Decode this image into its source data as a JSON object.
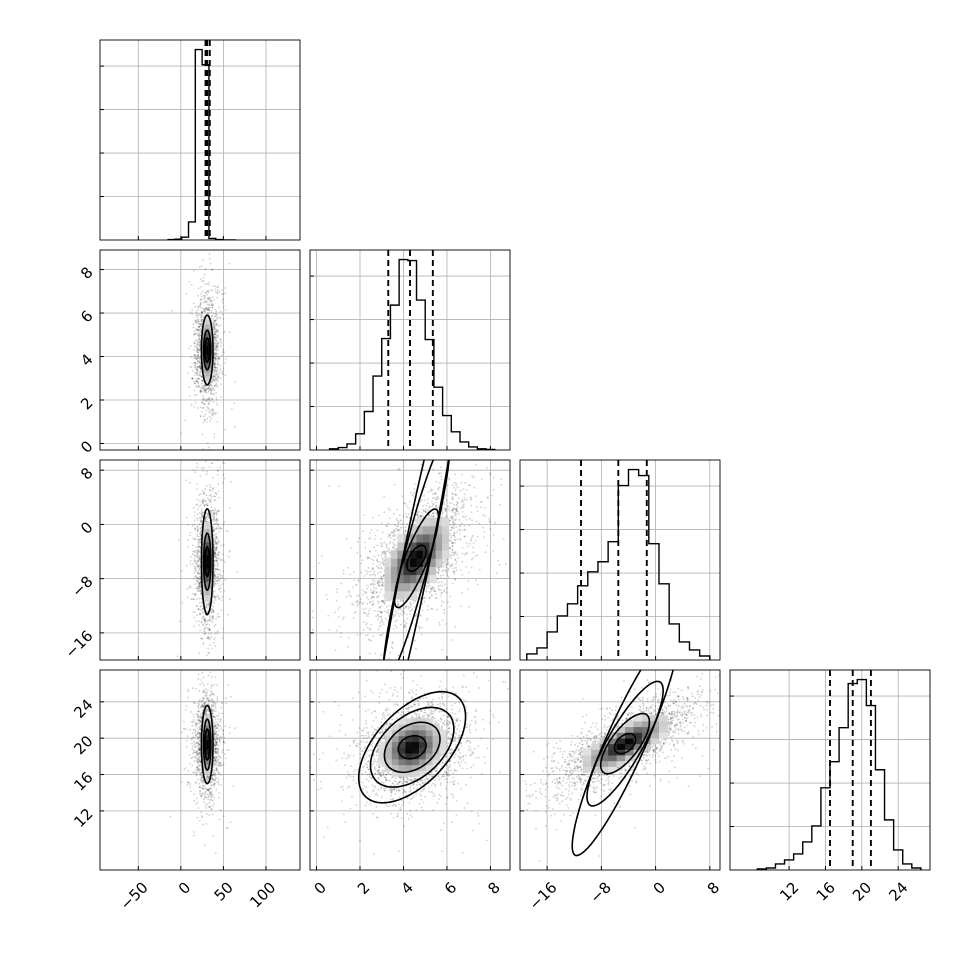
{
  "chart_data": {
    "type": "corner",
    "grid": true,
    "parameters": [
      {
        "range": [
          -95,
          140
        ],
        "ticks": [
          -50,
          0,
          50,
          100
        ],
        "tick_labels": [
          "−50",
          "0",
          "50",
          "100"
        ],
        "quantiles": [
          29,
          31,
          34
        ],
        "bin_edges": [
          -15,
          -7,
          1,
          9,
          17,
          25,
          33,
          41,
          49,
          57,
          65
        ],
        "hist_counts": [
          0.2,
          0.4,
          1.5,
          9.5,
          100,
          92,
          0.8,
          0.2,
          0,
          0
        ]
      },
      {
        "range": [
          -0.3,
          8.9
        ],
        "ticks": [
          0,
          2,
          4,
          6,
          8
        ],
        "tick_labels": [
          "0",
          "2",
          "4",
          "6",
          "8"
        ],
        "quantiles": [
          3.3,
          4.3,
          5.35
        ],
        "bin_edges": [
          0.6,
          1.0,
          1.4,
          1.8,
          2.2,
          2.6,
          3.0,
          3.4,
          3.8,
          4.2,
          4.6,
          5.0,
          5.4,
          5.8,
          6.2,
          6.6,
          7.0,
          7.4,
          7.8,
          8.2
        ],
        "hist_counts": [
          0.6,
          1.2,
          3.0,
          8.0,
          19.0,
          36.5,
          55.0,
          71.5,
          94.0,
          93.5,
          74.0,
          54.5,
          31.0,
          17.0,
          9.0,
          4.0,
          1.5,
          0.6,
          0.3
        ]
      },
      {
        "range": [
          -20,
          9.5
        ],
        "ticks": [
          -16,
          -8,
          0,
          8
        ],
        "tick_labels": [
          "−16",
          "−8",
          "0",
          "8"
        ],
        "quantiles": [
          -11,
          -5.5,
          -1.3
        ],
        "bin_edges": [
          -19,
          -17.5,
          -16,
          -14.5,
          -13,
          -11.5,
          -10,
          -8.5,
          -7,
          -5.5,
          -4,
          -2.5,
          -1,
          0.5,
          2,
          3.5,
          5,
          6.5,
          8
        ],
        "hist_counts": [
          3,
          6,
          14,
          22,
          28,
          37,
          44,
          49,
          59,
          87,
          95,
          92,
          58,
          38,
          18,
          9,
          5,
          2
        ]
      },
      {
        "range": [
          5.5,
          27.5
        ],
        "ticks": [
          12,
          16,
          20,
          24
        ],
        "tick_labels": [
          "12",
          "16",
          "20",
          "24"
        ],
        "quantiles": [
          16.5,
          19.0,
          21.0
        ],
        "bin_edges": [
          8.5,
          9.5,
          10.5,
          11.5,
          12.5,
          13.5,
          14.5,
          15.5,
          16.5,
          17.5,
          18.5,
          19.5,
          20.5,
          21.5,
          22.5,
          23.5,
          24.5,
          25.5,
          26.5
        ],
        "hist_counts": [
          0.5,
          1,
          3,
          5,
          8,
          14,
          22,
          41,
          54,
          71,
          93,
          95,
          82,
          50,
          25,
          10,
          3,
          1
        ]
      }
    ],
    "pairs": [
      {
        "x": 0,
        "y": 1,
        "center": [
          31,
          4.3
        ],
        "sd": [
          6,
          1.0
        ],
        "rho": 0.0,
        "contours": [
          [
            2.6,
            0.55
          ],
          [
            4.2,
            0.9
          ],
          [
            6.8,
            1.6
          ]
        ],
        "n_points": 1500
      },
      {
        "x": 0,
        "y": 2,
        "center": [
          31,
          -5.5
        ],
        "sd": [
          6,
          4.0
        ],
        "rho": 0.0,
        "contours": [
          [
            2.6,
            2.2
          ],
          [
            4.2,
            4.2
          ],
          [
            6.8,
            7.8
          ]
        ],
        "n_points": 1500
      },
      {
        "x": 1,
        "y": 2,
        "center": [
          4.6,
          -5.0
        ],
        "sd": [
          1.05,
          4.2
        ],
        "rho": 0.55,
        "contours": [
          [
            0.5,
            1.6
          ],
          [
            1.15,
            4.0
          ],
          [
            1.75,
            7.2
          ],
          [
            2.35,
            9.6
          ]
        ],
        "n_points": 2200
      },
      {
        "x": 0,
        "y": 3,
        "center": [
          31,
          19.3
        ],
        "sd": [
          6,
          2.3
        ],
        "rho": 0.0,
        "contours": [
          [
            2.6,
            1.7
          ],
          [
            4.2,
            2.8
          ],
          [
            6.8,
            4.3
          ]
        ],
        "n_points": 1500
      },
      {
        "x": 1,
        "y": 3,
        "center": [
          4.4,
          19.0
        ],
        "sd": [
          1.0,
          2.2
        ],
        "rho": 0.2,
        "contours": [
          [
            0.65,
            1.25
          ],
          [
            1.3,
            2.6
          ],
          [
            1.95,
            3.9
          ],
          [
            2.5,
            5.1
          ]
        ],
        "n_points": 2200
      },
      {
        "x": 2,
        "y": 3,
        "center": [
          -4.5,
          19.4
        ],
        "sd": [
          4.4,
          2.2
        ],
        "rho": 0.75,
        "contours": [
          [
            2.0,
            1.0
          ],
          [
            4.6,
            2.3
          ],
          [
            7.2,
            3.6
          ],
          [
            10.0,
            5.0
          ]
        ],
        "n_points": 2200
      }
    ]
  }
}
